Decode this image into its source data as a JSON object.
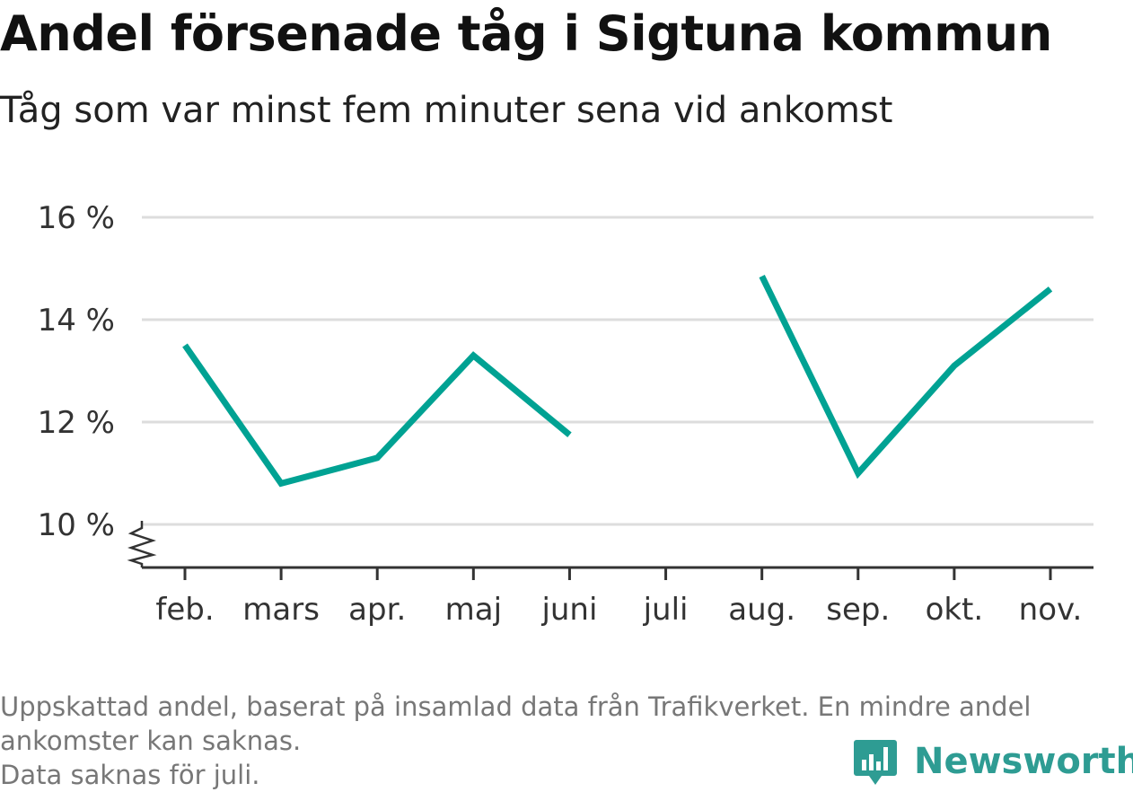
{
  "header": {
    "title": "Andel försenade tåg i Sigtuna kommun",
    "subtitle": "Tåg som var minst fem minuter sena vid ankomst"
  },
  "chart_data": {
    "type": "line",
    "categories": [
      "feb.",
      "mars",
      "apr.",
      "maj",
      "juni",
      "juli",
      "aug.",
      "sep.",
      "okt.",
      "nov."
    ],
    "series": [
      {
        "values": [
          13.5,
          10.8,
          11.3,
          13.3,
          11.75,
          null,
          14.85,
          11.0,
          13.1,
          14.6
        ]
      }
    ],
    "y_ticks": [
      {
        "value": 10,
        "label": "10 %"
      },
      {
        "value": 12,
        "label": "12 %"
      },
      {
        "value": 14,
        "label": "14 %"
      },
      {
        "value": 16,
        "label": "16 %"
      }
    ],
    "ylim": [
      9.2,
      16
    ],
    "y_axis_break": true,
    "grid": true,
    "line_color": "#00a293"
  },
  "footnote": {
    "line1": "Uppskattad andel, baserat på insamlad data från Trafikverket. En mindre andel",
    "line2": "ankomster kan saknas.",
    "line3": "Data saknas för juli."
  },
  "brand": {
    "name": "Newsworthy",
    "icon": "newsworthy-logo-icon",
    "color": "#2e9c93"
  }
}
